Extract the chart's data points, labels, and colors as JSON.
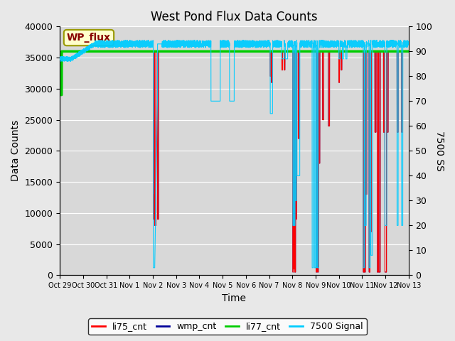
{
  "title": "West Pond Flux Data Counts",
  "xlabel": "Time",
  "ylabel_left": "Data Counts",
  "ylabel_right": "7500 SS",
  "ylim_left": [
    0,
    40000
  ],
  "ylim_right": [
    0,
    100
  ],
  "fig_facecolor": "#e8e8e8",
  "plot_bg_color": "#d8d8d8",
  "watermark_text": "WP_flux",
  "watermark_bg": "#ffffcc",
  "watermark_border": "#999900",
  "watermark_text_color": "#880000",
  "legend_items": [
    "li75_cnt",
    "wmp_cnt",
    "li77_cnt",
    "7500 Signal"
  ],
  "legend_colors": [
    "#ff0000",
    "#000099",
    "#00cc00",
    "#00ccff"
  ],
  "x_tick_labels": [
    "Oct 29",
    "Oct 30",
    "Oct 31",
    "Nov 1",
    "Nov 2",
    "Nov 3",
    "Nov 4",
    "Nov 5",
    "Nov 6",
    "Nov 7",
    "Nov 8",
    "Nov 9",
    "Nov 10",
    "Nov 11",
    "Nov 12",
    "Nov 13"
  ],
  "li77_cnt_value": 36000
}
